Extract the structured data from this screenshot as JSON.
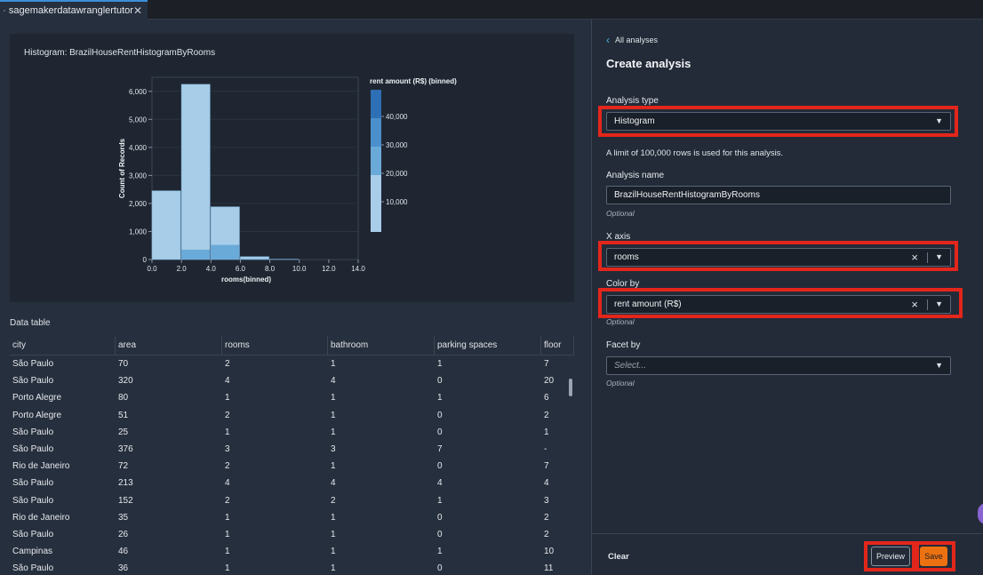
{
  "tab": {
    "title": "sagemakerdatawranglertutor",
    "close_label": "✕"
  },
  "chart": {
    "title": "Histogram: BrazilHouseRentHistogramByRooms"
  },
  "chart_data": {
    "type": "bar",
    "title": "Histogram: BrazilHouseRentHistogramByRooms",
    "xlabel": "rooms(binned)",
    "ylabel": "Count of Records",
    "xlim": [
      0,
      14
    ],
    "ylim": [
      0,
      6500
    ],
    "x_ticks": [
      "0.0",
      "2.0",
      "4.0",
      "6.0",
      "8.0",
      "10.0",
      "12.0",
      "14.0"
    ],
    "y_ticks": [
      "0",
      "1,000",
      "2,000",
      "3,000",
      "4,000",
      "5,000",
      "6,000"
    ],
    "y_tick_values": [
      0,
      1000,
      2000,
      3000,
      4000,
      5000,
      6000
    ],
    "bins": [
      {
        "x0": 0,
        "x1": 2,
        "total": 2450,
        "dark": 0
      },
      {
        "x0": 2,
        "x1": 4,
        "total": 6250,
        "dark": 350
      },
      {
        "x0": 4,
        "x1": 6,
        "total": 1880,
        "dark": 520
      },
      {
        "x0": 6,
        "x1": 8,
        "total": 100,
        "dark": 20
      },
      {
        "x0": 8,
        "x1": 10,
        "total": 10,
        "dark": 0
      }
    ],
    "legend": {
      "title": "rent amount (R$) (binned)",
      "labels": [
        "40,000",
        "30,000",
        "20,000",
        "10,000"
      ],
      "colors": [
        "#2f6fb5",
        "#4b8fcc",
        "#6aaad9",
        "#a7cde8"
      ]
    }
  },
  "data_table": {
    "title": "Data table",
    "columns": [
      "city",
      "area",
      "rooms",
      "bathroom",
      "parking spaces",
      "floor"
    ],
    "rows": [
      [
        "São Paulo",
        "70",
        "2",
        "1",
        "1",
        "7"
      ],
      [
        "São Paulo",
        "320",
        "4",
        "4",
        "0",
        "20"
      ],
      [
        "Porto Alegre",
        "80",
        "1",
        "1",
        "1",
        "6"
      ],
      [
        "Porto Alegre",
        "51",
        "2",
        "1",
        "0",
        "2"
      ],
      [
        "São Paulo",
        "25",
        "1",
        "1",
        "0",
        "1"
      ],
      [
        "São Paulo",
        "376",
        "3",
        "3",
        "7",
        "-"
      ],
      [
        "Rio de Janeiro",
        "72",
        "2",
        "1",
        "0",
        "7"
      ],
      [
        "São Paulo",
        "213",
        "4",
        "4",
        "4",
        "4"
      ],
      [
        "São Paulo",
        "152",
        "2",
        "2",
        "1",
        "3"
      ],
      [
        "Rio de Janeiro",
        "35",
        "1",
        "1",
        "0",
        "2"
      ],
      [
        "São Paulo",
        "26",
        "1",
        "1",
        "0",
        "2"
      ],
      [
        "Campinas",
        "46",
        "1",
        "1",
        "1",
        "10"
      ],
      [
        "São Paulo",
        "36",
        "1",
        "1",
        "0",
        "11"
      ]
    ]
  },
  "panel": {
    "back_label": "All analyses",
    "title": "Create analysis",
    "analysis_type": {
      "label": "Analysis type",
      "value": "Histogram"
    },
    "limit_note": "A limit of 100,000 rows is used for this analysis.",
    "analysis_name": {
      "label": "Analysis name",
      "value": "BrazilHouseRentHistogramByRooms",
      "hint": "Optional"
    },
    "x_axis": {
      "label": "X axis",
      "value": "rooms"
    },
    "color_by": {
      "label": "Color by",
      "value": "rent amount (R$)",
      "hint": "Optional"
    },
    "facet_by": {
      "label": "Facet by",
      "placeholder": "Select...",
      "hint": "Optional"
    },
    "clear_label": "Clear",
    "preview_label": "Preview",
    "save_label": "Save"
  },
  "colors": {
    "accent_red": "#e3261b",
    "save_orange": "#ec7211",
    "link_blue": "#4fb3e8"
  }
}
